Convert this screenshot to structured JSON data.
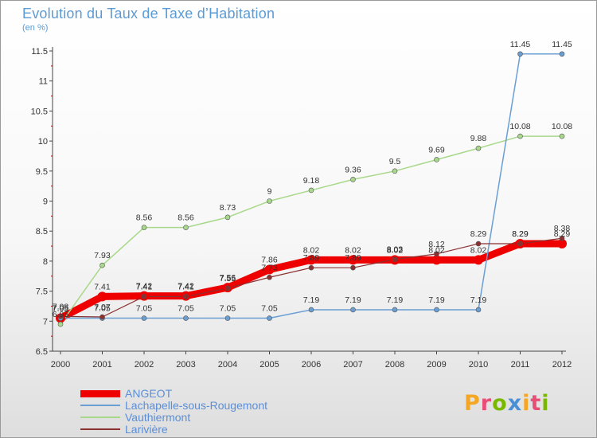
{
  "header": {
    "title": "Evolution du Taux de Taxe d’Habitation",
    "unit": "(en %)"
  },
  "logo": {
    "text": "Proxiti",
    "colors": [
      "#f5a623",
      "#e94e77",
      "#7ab800",
      "#4a90d9",
      "#f5a623",
      "#e94e77",
      "#7ab800"
    ]
  },
  "chart_data": {
    "type": "line",
    "x": [
      2000,
      2001,
      2002,
      2003,
      2004,
      2005,
      2006,
      2007,
      2008,
      2009,
      2010,
      2011,
      2012
    ],
    "ylim": [
      6.5,
      11.5
    ],
    "yticks": [
      "6.5",
      "7",
      "7.5",
      "8",
      "8.5",
      "9",
      "9.5",
      "10",
      "10.5",
      "11",
      "11.5"
    ],
    "grid": false,
    "legend": "bottom-left",
    "series": [
      {
        "name": "ANGEOT",
        "color": "#ee0000",
        "stroke": 9,
        "values": [
          7.05,
          7.41,
          7.42,
          7.42,
          7.56,
          7.86,
          8.02,
          8.02,
          8.02,
          8.02,
          8.02,
          8.29,
          8.29
        ],
        "labels": [
          "7.05",
          "7.41",
          "7.42",
          "7.42",
          "7.56",
          "7.86",
          "8.02",
          "8.02",
          "8.02",
          "8.02",
          "8.02",
          "8.29",
          "8.29"
        ]
      },
      {
        "name": "Lachapelle-sous-Rougemont",
        "color": "#6a9fd4",
        "stroke": 1.5,
        "values": [
          7.05,
          7.05,
          7.05,
          7.05,
          7.05,
          7.05,
          7.19,
          7.19,
          7.19,
          7.19,
          7.19,
          11.45,
          11.45
        ],
        "labels": [
          "7.05",
          "7.05",
          "7.05",
          "7.05",
          "7.05",
          "7.05",
          "7.19",
          "7.19",
          "7.19",
          "7.19",
          "7.19",
          "11.45",
          "11.45"
        ]
      },
      {
        "name": "Vauthiermont",
        "color": "#a8d88a",
        "stroke": 1.5,
        "values": [
          6.95,
          7.93,
          8.56,
          8.56,
          8.73,
          9,
          9.18,
          9.36,
          9.5,
          9.69,
          9.88,
          10.08,
          10.08
        ],
        "labels": [
          "6.95",
          "7.93",
          "8.56",
          "8.56",
          "8.73",
          "9",
          "9.18",
          "9.36",
          "9.5",
          "9.69",
          "9.88",
          "10.08",
          "10.08"
        ]
      },
      {
        "name": "Larivière",
        "color": "#8b2f2f",
        "stroke": 1.2,
        "values": [
          7.08,
          7.07,
          7.41,
          7.41,
          7.55,
          7.73,
          7.89,
          7.89,
          8.03,
          8.12,
          8.29,
          8.29,
          8.38
        ],
        "labels": [
          "7.08",
          "7.07",
          "7.41",
          "7.41",
          "7.55",
          "7.73",
          "7.89",
          "7.89",
          "8.03",
          "8.12",
          "8.29",
          "8.29",
          "8.38"
        ]
      }
    ]
  }
}
